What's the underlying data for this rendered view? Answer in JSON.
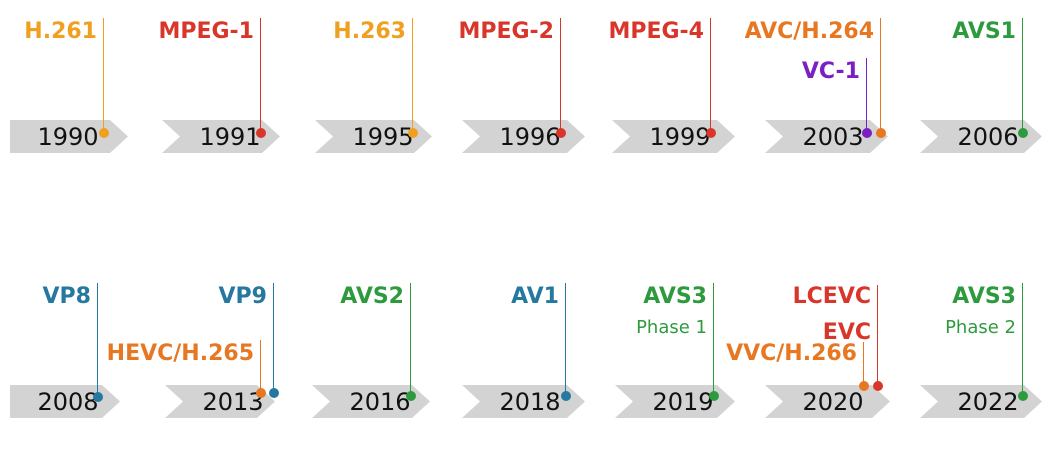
{
  "colors": {
    "itu": "#f0a020",
    "mpeg": "#d9362b",
    "joint": "#e87722",
    "smpte": "#7a1fc2",
    "avs": "#2e9a3e",
    "google": "#2578a0",
    "arrow": "#d3d3d3"
  },
  "years": [
    "1990",
    "1991",
    "1995",
    "1996",
    "1999",
    "2003",
    "2006",
    "2008",
    "2013",
    "2016",
    "2018",
    "2019",
    "2020",
    "2022"
  ],
  "codecs": [
    {
      "label": "H.261",
      "year": "1990",
      "color": "itu"
    },
    {
      "label": "MPEG-1",
      "year": "1991",
      "color": "mpeg"
    },
    {
      "label": "H.263",
      "year": "1995",
      "color": "itu"
    },
    {
      "label": "MPEG-2",
      "year": "1996",
      "color": "mpeg"
    },
    {
      "label": "MPEG-4",
      "year": "1999",
      "color": "mpeg"
    },
    {
      "label": "AVC/H.264",
      "year": "2003",
      "color": "joint"
    },
    {
      "label": "VC-1",
      "year": "2003",
      "color": "smpte"
    },
    {
      "label": "AVS1",
      "year": "2006",
      "color": "avs"
    },
    {
      "label": "VP8",
      "year": "2008",
      "color": "google"
    },
    {
      "label": "HEVC/H.265",
      "year": "2013",
      "color": "joint"
    },
    {
      "label": "VP9",
      "year": "2013",
      "color": "google"
    },
    {
      "label": "AVS2",
      "year": "2016",
      "color": "avs"
    },
    {
      "label": "AV1",
      "year": "2018",
      "color": "google"
    },
    {
      "label": "AVS3",
      "sub": "Phase 1",
      "year": "2019",
      "color": "avs"
    },
    {
      "label": "LCEVC",
      "label2": "EVC",
      "year": "2020",
      "color": "mpeg"
    },
    {
      "label": "VVC/H.266",
      "year": "2020",
      "color": "joint"
    },
    {
      "label": "AVS3",
      "sub": "Phase 2",
      "year": "2022",
      "color": "avs"
    }
  ]
}
